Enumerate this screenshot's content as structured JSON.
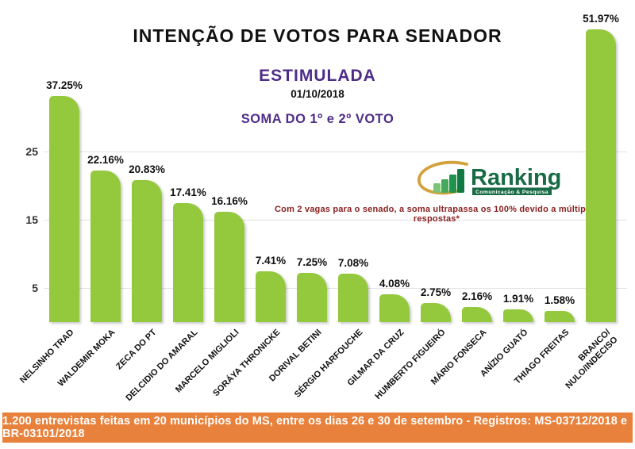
{
  "header": {
    "title": "INTENÇÃO DE VOTOS PARA SENADOR",
    "subtitle": "ESTIMULADA",
    "date": "01/10/2018",
    "subheading": "SOMA DO 1º e 2º VOTO"
  },
  "logo": {
    "name": "Ranking",
    "tagline": "Comunicação & Pesquisa"
  },
  "note": "Com 2 vagas para o senado, a soma ultrapassa os 100% devido a múltiplas respostas*",
  "footer": {
    "text": "1.200 entrevistas feitas em 20 municípios do MS, entre os dias 26 e 30 de setembro - Registros: MS-03712/2018 e BR-03101/2018"
  },
  "colors": {
    "bar_green": "#95C93D",
    "accent_purple": "#4F2D87",
    "footer_orange": "#E8813B",
    "note_red": "#8A1F1F",
    "logo_green": "#186B45",
    "logo_gold": "#D2A23C",
    "gridline_gray": "#E3E3E3"
  },
  "chart_data": {
    "type": "bar",
    "title": "INTENÇÃO DE VOTOS PARA SENADOR",
    "subtitle": "ESTIMULADA",
    "date": "01/10/2018",
    "sum_note": "SOMA DO 1º e 2º VOTO",
    "categories": [
      "NELSINHO TRAD",
      "WALDEMIR MOKA",
      "ZECA DO PT",
      "DELCIDIO DO AMARAL",
      "MARCELO MIGLIOLI",
      "SORÁYA THRONICKE",
      "DORIVAL BETINI",
      "SÉRGIO HARFOUCHE",
      "GILMAR DA CRUZ",
      "HUMBERTO FIGUEIRÓ",
      "MÁRIO FONSECA",
      "ANÍZIO GUATÓ",
      "THIAGO FREITAS",
      "BRANCO/\nNULO/INDECISO"
    ],
    "values": [
      37.25,
      22.16,
      20.83,
      17.41,
      16.16,
      7.41,
      7.25,
      7.08,
      4.08,
      2.75,
      2.16,
      1.91,
      1.58,
      51.97
    ],
    "labels": [
      "37.25%",
      "22.16%",
      "20.83%",
      "17.41%",
      "16.16%",
      "7.41%",
      "7.25%",
      "7.08%",
      "4.08%",
      "2.75%",
      "2.16%",
      "1.91%",
      "1.58%",
      "51.97%"
    ],
    "yticks": [
      5,
      15,
      25
    ],
    "ylim": [
      0,
      55
    ],
    "grid": true,
    "legend": false,
    "bar_color": "#95C93D"
  }
}
